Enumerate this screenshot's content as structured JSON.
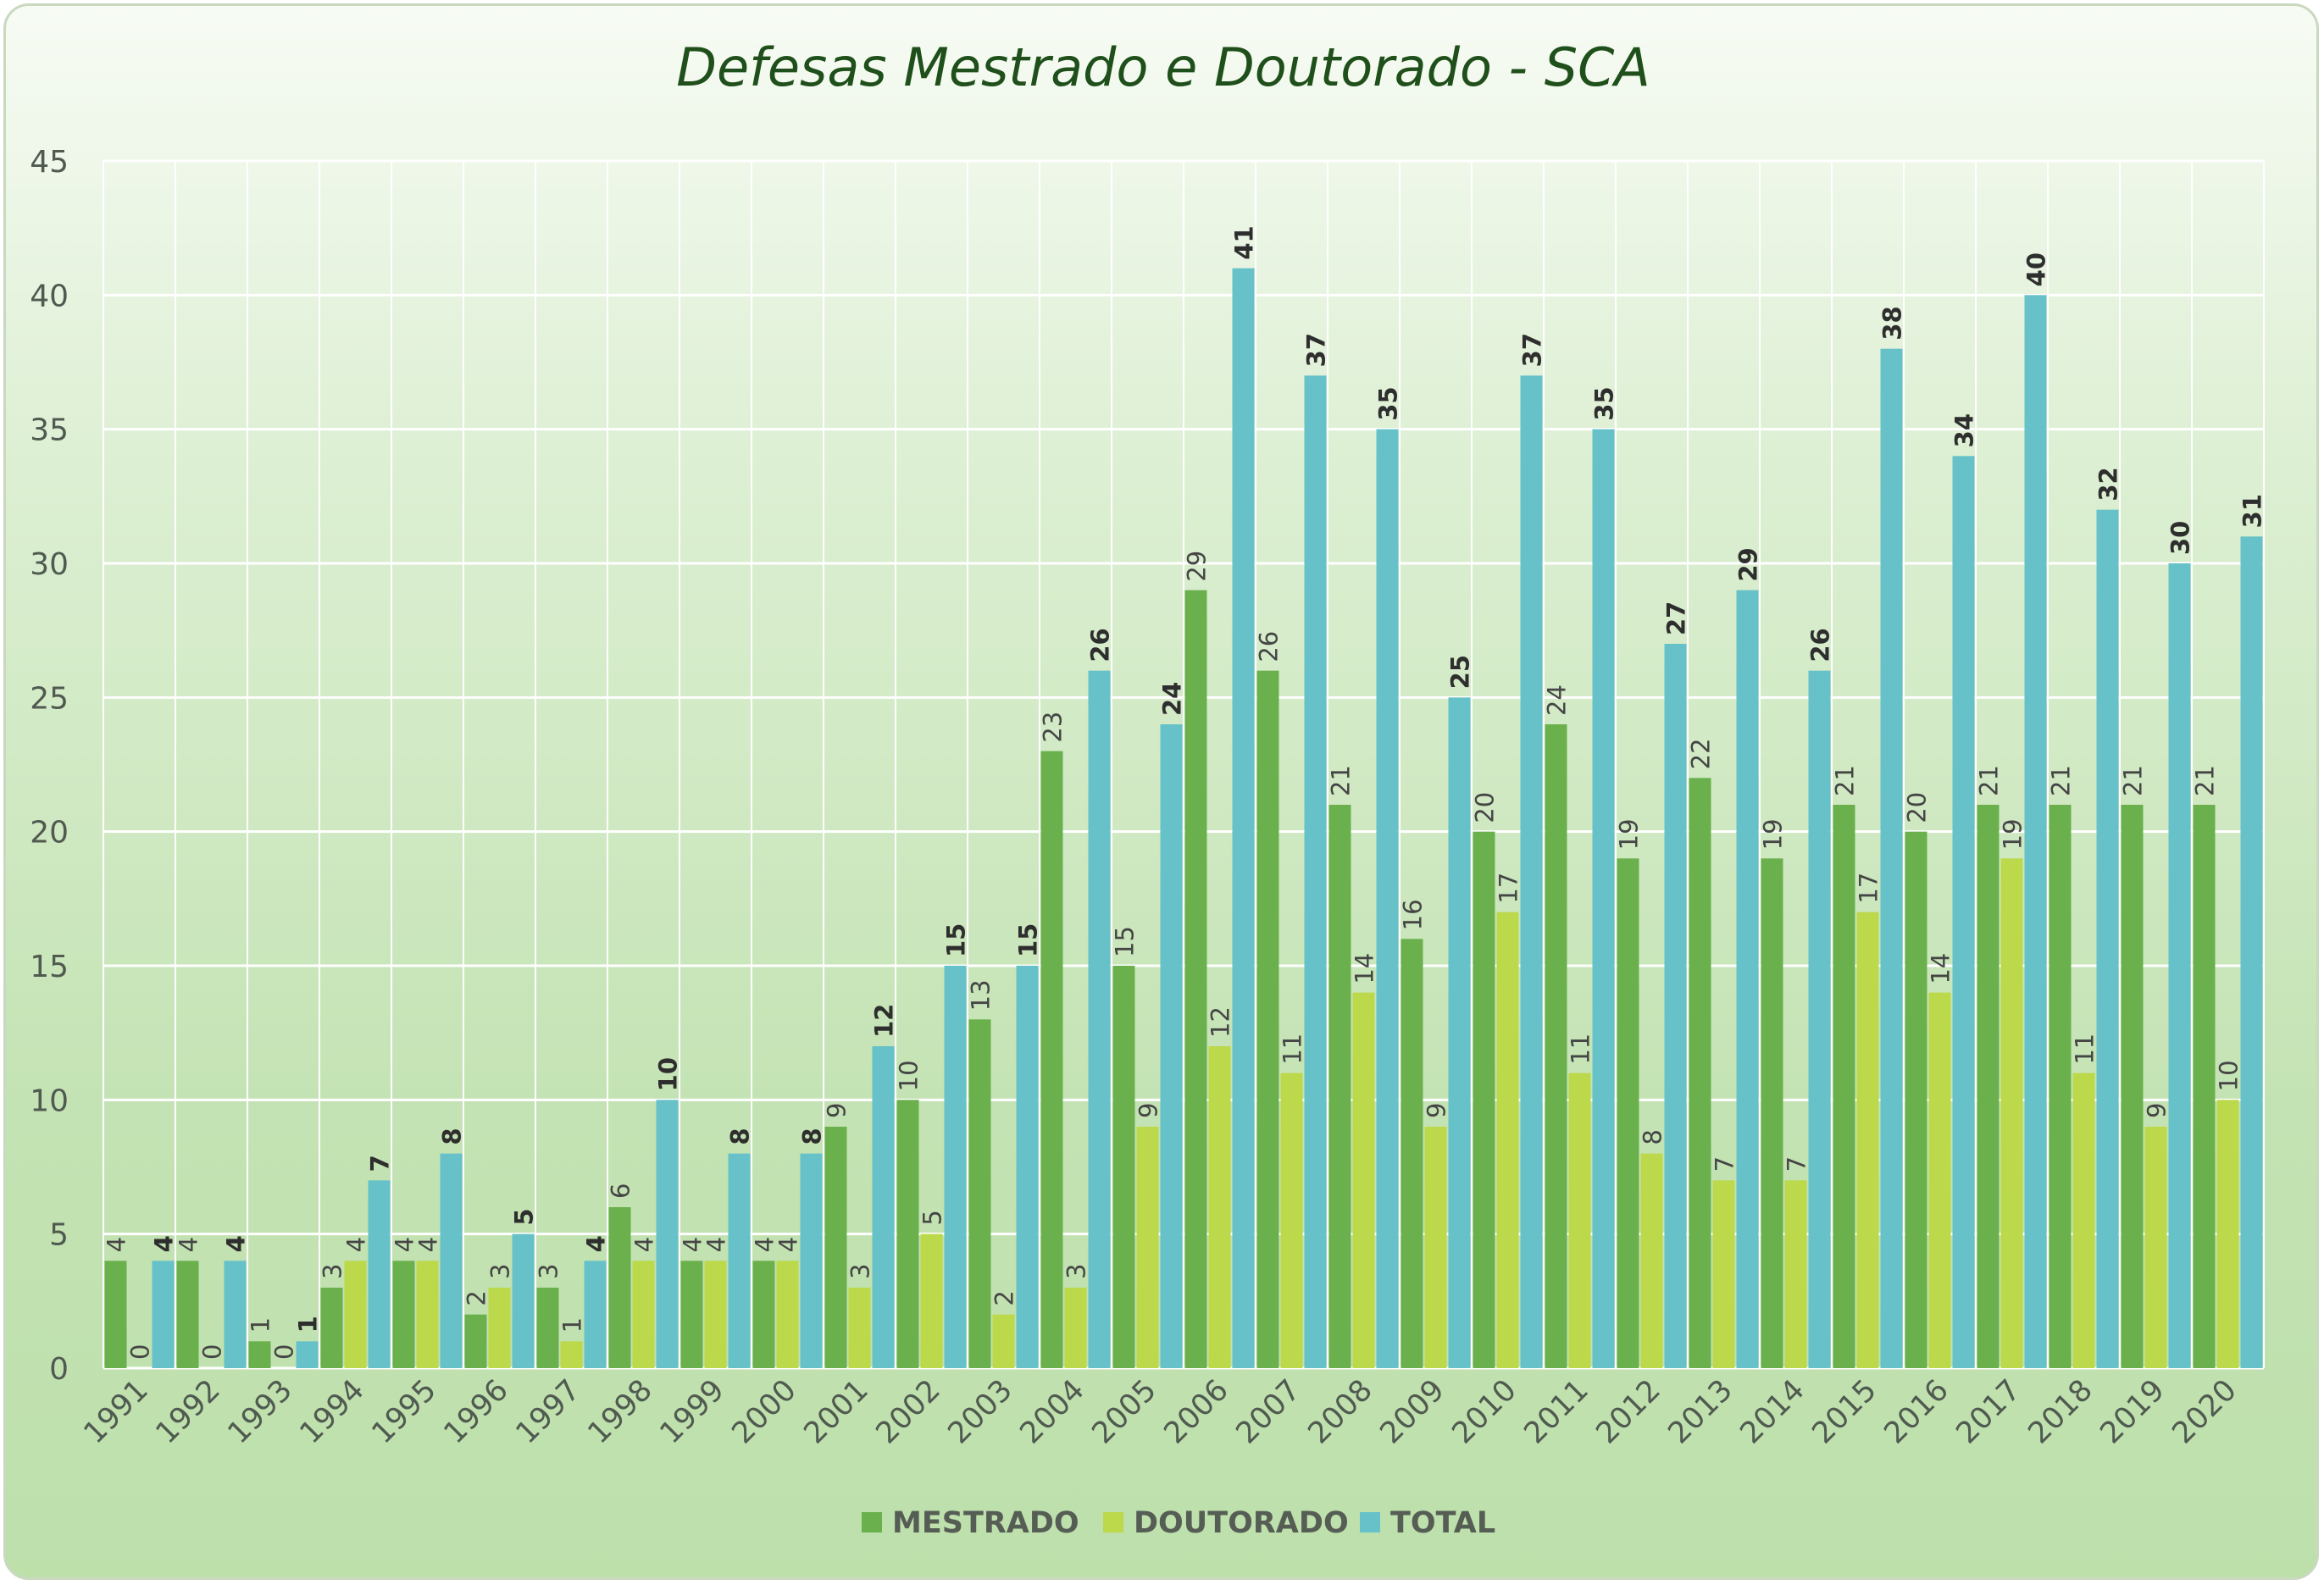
{
  "chart_data": {
    "type": "bar",
    "title": "Defesas Mestrado e Doutorado - SCA",
    "xlabel": "",
    "ylabel": "",
    "ylim": [
      0,
      45
    ],
    "y_ticks": [
      0,
      5,
      10,
      15,
      20,
      25,
      30,
      35,
      40,
      45
    ],
    "grid": true,
    "legend_position": "bottom",
    "categories": [
      "1991",
      "1992",
      "1993",
      "1994",
      "1995",
      "1996",
      "1997",
      "1998",
      "1999",
      "2000",
      "2001",
      "2002",
      "2003",
      "2004",
      "2005",
      "2006",
      "2007",
      "2008",
      "2009",
      "2010",
      "2011",
      "2012",
      "2013",
      "2014",
      "2015",
      "2016",
      "2017",
      "2018",
      "2019",
      "2020"
    ],
    "series": [
      {
        "name": "MESTRADO",
        "color": "#6ab04c",
        "values": [
          4,
          4,
          1,
          3,
          4,
          2,
          3,
          6,
          4,
          4,
          9,
          10,
          13,
          23,
          15,
          29,
          26,
          21,
          16,
          20,
          24,
          19,
          22,
          19,
          21,
          20,
          21,
          21,
          21,
          21
        ]
      },
      {
        "name": "DOUTORADO",
        "color": "#bcd84b",
        "values": [
          0,
          0,
          0,
          4,
          4,
          3,
          1,
          4,
          4,
          4,
          3,
          5,
          2,
          3,
          9,
          12,
          11,
          14,
          9,
          17,
          11,
          8,
          7,
          7,
          17,
          14,
          19,
          11,
          9,
          10
        ]
      },
      {
        "name": "TOTAL",
        "color": "#66c2c8",
        "values": [
          4,
          4,
          1,
          7,
          8,
          5,
          4,
          10,
          8,
          8,
          12,
          15,
          15,
          26,
          24,
          41,
          37,
          35,
          25,
          37,
          35,
          27,
          29,
          26,
          38,
          34,
          40,
          32,
          30,
          31
        ]
      }
    ]
  }
}
